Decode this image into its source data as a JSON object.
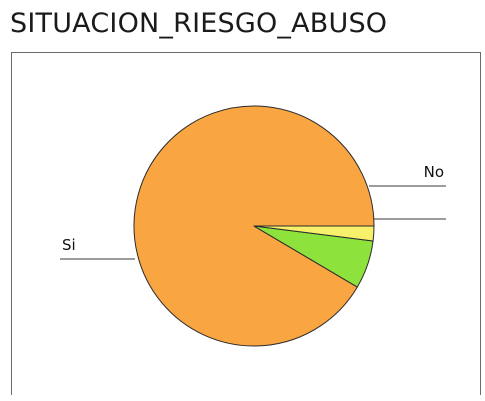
{
  "chart_data": {
    "type": "pie",
    "title": "SITUACION_RIESGO_ABUSO",
    "categories": [
      "Si",
      "No",
      ""
    ],
    "values": [
      91.5,
      6.5,
      2.0
    ],
    "unit": "percent",
    "colors": [
      "#F9A642",
      "#8EE23C",
      "#F7F06A"
    ],
    "start_angle_deg": 0,
    "direction": "counterclockwise",
    "legend": "none"
  }
}
